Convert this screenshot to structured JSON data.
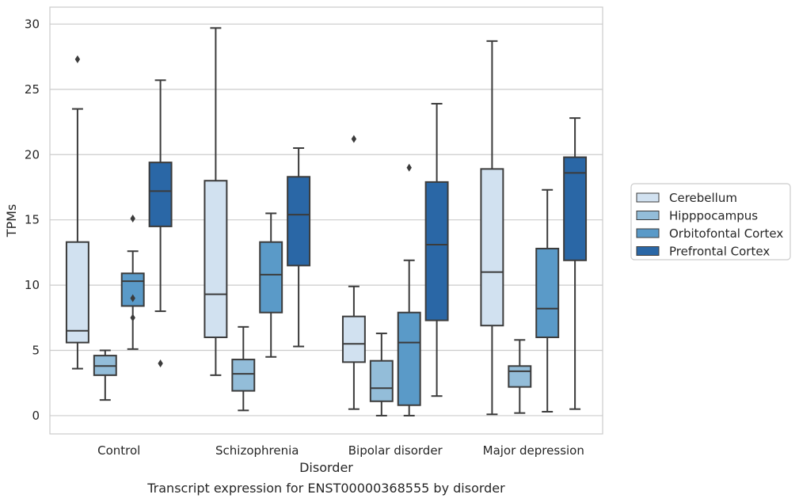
{
  "caption": "Transcript expression for ENST00000368555 by disorder",
  "chart_data": {
    "type": "boxplot",
    "title": "",
    "xlabel": "Disorder",
    "ylabel": "TPMs",
    "ylim": [
      -1.4,
      31.3
    ],
    "yticks": [
      0,
      5,
      10,
      15,
      20,
      25,
      30
    ],
    "grid": "horizontal",
    "legend_position": "right",
    "categories": [
      "Control",
      "Schizophrenia",
      "Bipolar disorder",
      "Major depression"
    ],
    "series": [
      {
        "name": "Cerebellum",
        "color": "#d1e1f0",
        "boxes": [
          {
            "whisker_low": 3.6,
            "q1": 5.6,
            "median": 6.5,
            "q3": 13.3,
            "whisker_high": 23.5,
            "outliers": [
              27.3
            ]
          },
          {
            "whisker_low": 3.1,
            "q1": 6.0,
            "median": 9.3,
            "q3": 18.0,
            "whisker_high": 29.7,
            "outliers": []
          },
          {
            "whisker_low": 0.5,
            "q1": 4.1,
            "median": 5.5,
            "q3": 7.6,
            "whisker_high": 9.9,
            "outliers": [
              21.2
            ]
          },
          {
            "whisker_low": 0.1,
            "q1": 6.9,
            "median": 11.0,
            "q3": 18.9,
            "whisker_high": 28.7,
            "outliers": []
          }
        ]
      },
      {
        "name": "Hipppocampus",
        "color": "#93bdd9",
        "boxes": [
          {
            "whisker_low": 1.2,
            "q1": 3.1,
            "median": 3.8,
            "q3": 4.6,
            "whisker_high": 5.0,
            "outliers": []
          },
          {
            "whisker_low": 0.4,
            "q1": 1.9,
            "median": 3.2,
            "q3": 4.3,
            "whisker_high": 6.8,
            "outliers": []
          },
          {
            "whisker_low": 0.0,
            "q1": 1.1,
            "median": 2.1,
            "q3": 4.2,
            "whisker_high": 6.3,
            "outliers": []
          },
          {
            "whisker_low": 0.2,
            "q1": 2.2,
            "median": 3.4,
            "q3": 3.8,
            "whisker_high": 5.8,
            "outliers": []
          }
        ]
      },
      {
        "name": "Orbitofontal Cortex",
        "color": "#5a9ac8",
        "boxes": [
          {
            "whisker_low": 5.1,
            "q1": 8.4,
            "median": 10.3,
            "q3": 10.9,
            "whisker_high": 12.6,
            "outliers": [
              15.1,
              9.0,
              7.5
            ]
          },
          {
            "whisker_low": 4.5,
            "q1": 7.9,
            "median": 10.8,
            "q3": 13.3,
            "whisker_high": 15.5,
            "outliers": []
          },
          {
            "whisker_low": 0.0,
            "q1": 0.8,
            "median": 5.6,
            "q3": 7.9,
            "whisker_high": 11.9,
            "outliers": [
              19.0
            ]
          },
          {
            "whisker_low": 0.3,
            "q1": 6.0,
            "median": 8.2,
            "q3": 12.8,
            "whisker_high": 17.3,
            "outliers": []
          }
        ]
      },
      {
        "name": "Prefrontal Cortex",
        "color": "#2a67a6",
        "boxes": [
          {
            "whisker_low": 8.0,
            "q1": 14.5,
            "median": 17.2,
            "q3": 19.4,
            "whisker_high": 25.7,
            "outliers": [
              4.0
            ]
          },
          {
            "whisker_low": 5.3,
            "q1": 11.5,
            "median": 15.4,
            "q3": 18.3,
            "whisker_high": 20.5,
            "outliers": []
          },
          {
            "whisker_low": 1.5,
            "q1": 7.3,
            "median": 13.1,
            "q3": 17.9,
            "whisker_high": 23.9,
            "outliers": []
          },
          {
            "whisker_low": 0.5,
            "q1": 11.9,
            "median": 18.6,
            "q3": 19.8,
            "whisker_high": 22.8,
            "outliers": []
          }
        ]
      }
    ]
  }
}
